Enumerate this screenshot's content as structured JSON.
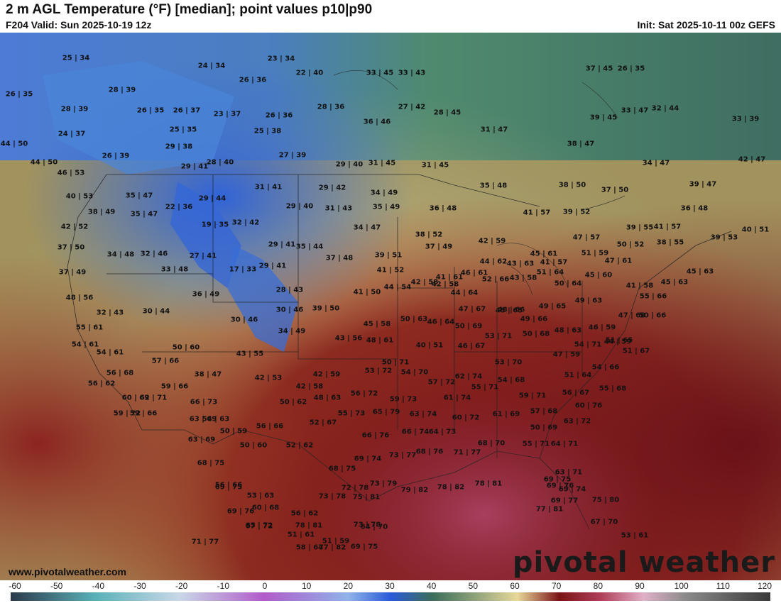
{
  "header": {
    "title": "2 m AGL Temperature (°F) [median]; point values p10|p90",
    "valid": "F204 Valid: Sun 2025-10-19 12z",
    "init": "Init: Sat 2025-10-11 00z GEFS"
  },
  "branding": {
    "logo_text": "pivotal weather",
    "website": "www.pivotalweather.com"
  },
  "colorbar": {
    "ticks": [
      "-60",
      "-50",
      "-40",
      "-30",
      "-20",
      "-10",
      "0",
      "10",
      "20",
      "30",
      "40",
      "50",
      "60",
      "70",
      "80",
      "90",
      "100",
      "110",
      "120"
    ],
    "colors": {
      "c_neg60": "#2b3a4a",
      "c_neg40": "#5ab0b8",
      "c_neg20": "#c9d8e8",
      "c_0": "#b15cc8",
      "c_20": "#8fb3e8",
      "c_30": "#2a5ad8",
      "c_40": "#3b6e5a",
      "c_50": "#8ea27a",
      "c_60": "#e8d89a",
      "c_70": "#7a1416",
      "c_80": "#b0405a",
      "c_90": "#e0b0c8",
      "c_100": "#8a8a8a",
      "c_120": "#3a3a3a"
    }
  },
  "point_values": [
    "25|34",
    "24|34",
    "23|34",
    "26|35",
    "28|39",
    "26|36",
    "22|40",
    "33|45",
    "33|43",
    "37|45",
    "26|35",
    "28|39",
    "26|35",
    "26|37",
    "23|37",
    "26|36",
    "28|36",
    "27|42",
    "28|45",
    "36|46",
    "31|47",
    "39|45",
    "33|47",
    "32|44",
    "33|39",
    "24|37",
    "25|35",
    "25|38",
    "29|38",
    "27|39",
    "38|47",
    "44|50",
    "26|39",
    "28|40",
    "29|41",
    "29|40",
    "31|45",
    "31|45",
    "34|47",
    "42|47",
    "44|50",
    "46|53",
    "40|53",
    "35|48",
    "39|47",
    "38|50",
    "37|50",
    "31|41",
    "29|42",
    "34|49",
    "35|47",
    "29|44",
    "29|40",
    "31|43",
    "35|49",
    "36|48",
    "36|48",
    "38|49",
    "22|36",
    "35|47",
    "41|57",
    "39|52",
    "39|55",
    "41|57",
    "40|51",
    "42|52",
    "19|35",
    "32|42",
    "34|47",
    "38|52",
    "47|57",
    "50|52",
    "38|55",
    "39|53",
    "37|50",
    "34|48",
    "32|46",
    "29|41",
    "35|44",
    "42|59",
    "37|49",
    "43|58",
    "27|41",
    "37|48",
    "39|51",
    "44|62",
    "43|63",
    "45|61",
    "51|59",
    "47|61",
    "33|48",
    "17|33",
    "29|41",
    "41|52",
    "42|58",
    "41|61",
    "46|61",
    "41|57",
    "45|63",
    "37|49",
    "42|58",
    "51|64",
    "45|60",
    "45|63",
    "48|56",
    "36|49",
    "28|43",
    "41|50",
    "44|54",
    "44|64",
    "52|66",
    "50|64",
    "41|58",
    "32|43",
    "30|44",
    "30|46",
    "39|50",
    "47|67",
    "45|65",
    "49|63",
    "55|66",
    "55|61",
    "30|46",
    "45|58",
    "50|63",
    "46|64",
    "48|66",
    "49|65",
    "47|68",
    "50|66",
    "54|61",
    "34|49",
    "43|56",
    "48|61",
    "50|69",
    "49|66",
    "50|68",
    "48|63",
    "46|59",
    "51|65",
    "54|61",
    "43|55",
    "40|51",
    "46|67",
    "53|71",
    "54|71",
    "44|59",
    "51|67",
    "56|68",
    "50|60",
    "57|66",
    "38|47",
    "42|53",
    "42|59",
    "50|71",
    "53|70",
    "47|59",
    "54|66",
    "56|62",
    "59|66",
    "42|58",
    "53|72",
    "54|70",
    "57|72",
    "62|74",
    "54|68",
    "51|64",
    "60|69",
    "62|71",
    "66|73",
    "50|62",
    "48|63",
    "56|72",
    "59|73",
    "55|71",
    "59|71",
    "56|67",
    "55|68",
    "59|72",
    "59|66",
    "63|69",
    "54|63",
    "55|73",
    "65|79",
    "63|74",
    "61|74",
    "61|69",
    "57|68",
    "60|76",
    "52|67",
    "60|72",
    "50|69",
    "63|72",
    "50|59",
    "56|66",
    "66|76",
    "66|74",
    "64|73",
    "63|69",
    "50|60",
    "52|62",
    "73|77",
    "68|76",
    "71|77",
    "68|70",
    "55|71",
    "64|71",
    "68|75",
    "69|74",
    "56|66",
    "68|75",
    "63|71",
    "69|75",
    "72|78",
    "73|79",
    "79|82",
    "78|82",
    "78|81",
    "69|76",
    "53|63",
    "69|75",
    "69|74",
    "69|77",
    "75|80",
    "69|76",
    "73|78",
    "75|81",
    "64|70",
    "60|68",
    "56|62",
    "65|72",
    "73|78",
    "77|81",
    "67|70",
    "51|61",
    "58|64",
    "77|82",
    "71|77",
    "78|81",
    "51|59",
    "67|72",
    "69|75",
    "53|61"
  ]
}
